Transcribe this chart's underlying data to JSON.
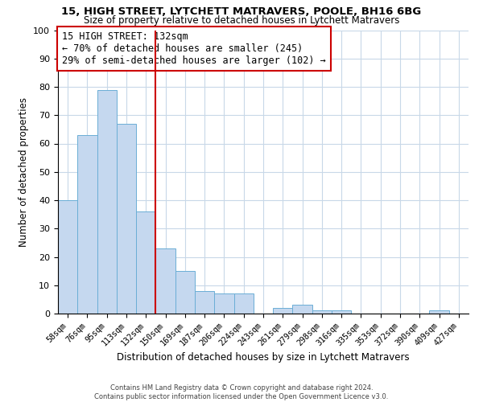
{
  "title1": "15, HIGH STREET, LYTCHETT MATRAVERS, POOLE, BH16 6BG",
  "title2": "Size of property relative to detached houses in Lytchett Matravers",
  "xlabel": "Distribution of detached houses by size in Lytchett Matravers",
  "ylabel": "Number of detached properties",
  "bar_labels": [
    "58sqm",
    "76sqm",
    "95sqm",
    "113sqm",
    "132sqm",
    "150sqm",
    "169sqm",
    "187sqm",
    "206sqm",
    "224sqm",
    "243sqm",
    "261sqm",
    "279sqm",
    "298sqm",
    "316sqm",
    "335sqm",
    "353sqm",
    "372sqm",
    "390sqm",
    "409sqm",
    "427sqm"
  ],
  "bar_values": [
    40,
    63,
    79,
    67,
    36,
    23,
    15,
    8,
    7,
    7,
    0,
    2,
    3,
    1,
    1,
    0,
    0,
    0,
    0,
    1,
    0
  ],
  "bar_color": "#c5d8ef",
  "bar_edge_color": "#6baed6",
  "vline_color": "#cc0000",
  "annotation_title": "15 HIGH STREET: 132sqm",
  "annotation_line1": "← 70% of detached houses are smaller (245)",
  "annotation_line2": "29% of semi-detached houses are larger (102) →",
  "annotation_box_color": "#ffffff",
  "annotation_box_edge": "#cc0000",
  "footer1": "Contains HM Land Registry data © Crown copyright and database right 2024.",
  "footer2": "Contains public sector information licensed under the Open Government Licence v3.0.",
  "ylim": [
    0,
    100
  ],
  "yticks": [
    0,
    10,
    20,
    30,
    40,
    50,
    60,
    70,
    80,
    90,
    100
  ],
  "background_color": "#ffffff",
  "grid_color": "#c8d8e8"
}
